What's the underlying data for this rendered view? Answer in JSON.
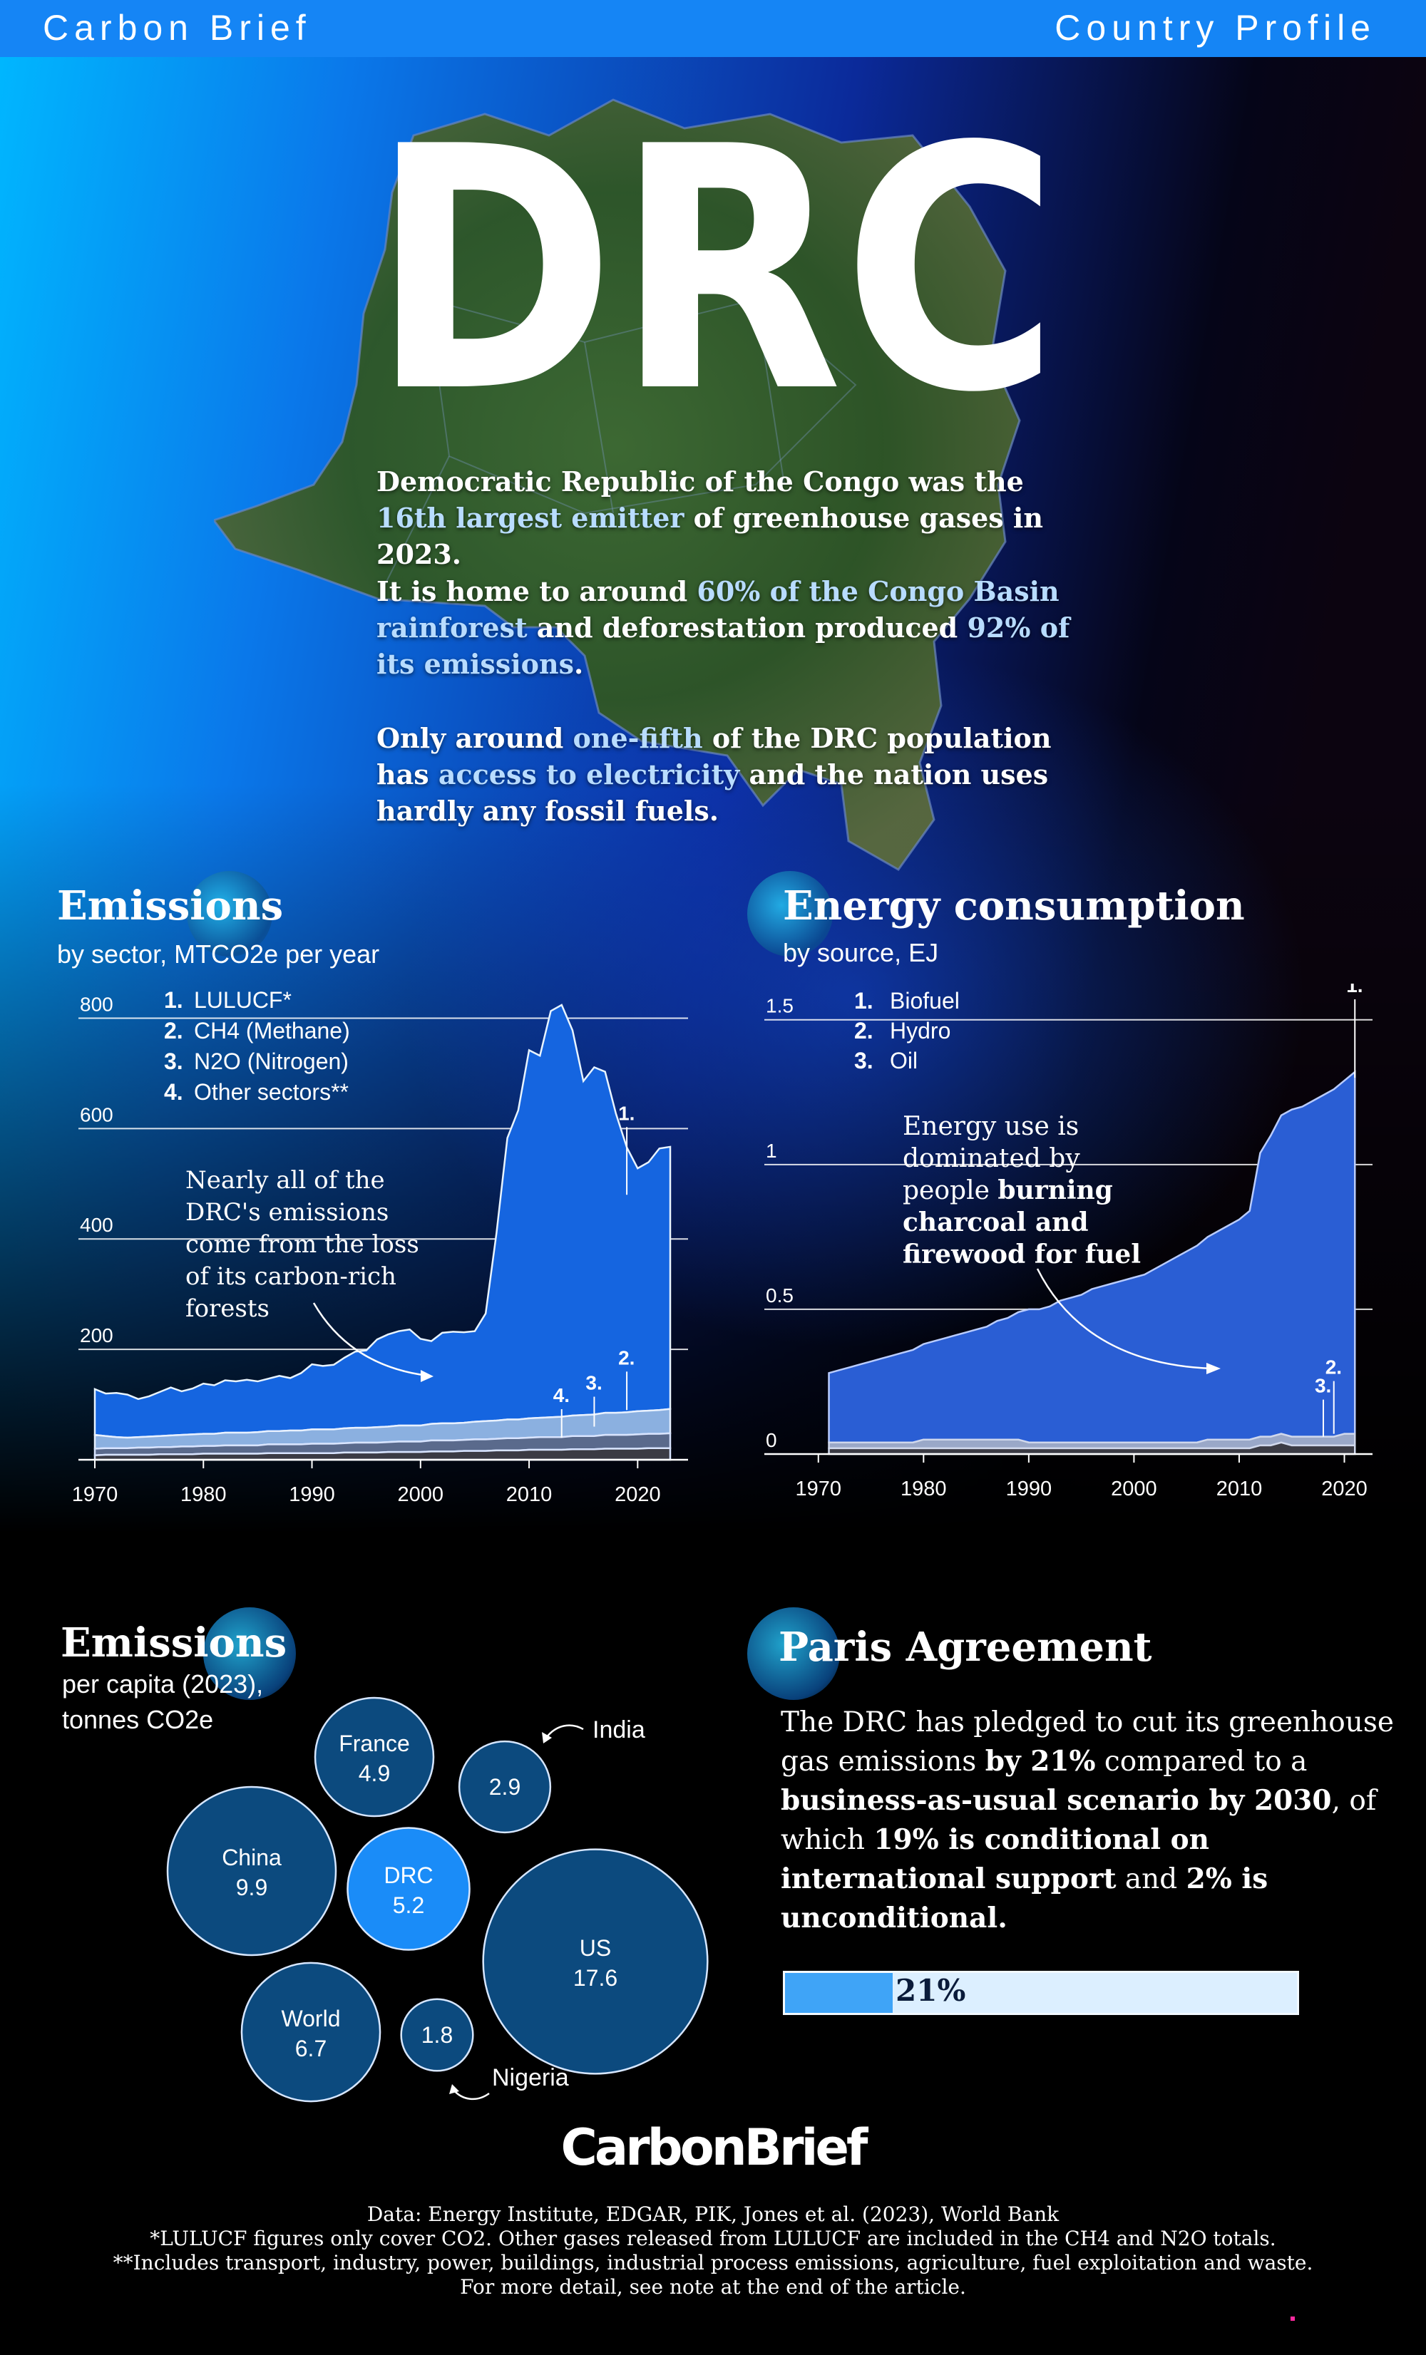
{
  "header": {
    "brand": "Carbon Brief",
    "profile": "Country Profile"
  },
  "title": "DRC",
  "intro": {
    "p1": {
      "a": "Democratic Republic of the Congo was the ",
      "b": "16th largest emitter",
      "c": " of greenhouse gases in 2023."
    },
    "p2": {
      "a": "It is home to around ",
      "b": "60% of the Congo Basin rainforest",
      "c": " and deforestation produced ",
      "d": "92% of its emissions",
      "e": "."
    },
    "p3": {
      "a": "Only around ",
      "b": "one-fifth",
      "c": " of the DRC population has ",
      "d": "access to electricity",
      "e": " and the nation uses hardly any fossil fuels."
    }
  },
  "emissions": {
    "title": "Emissions",
    "subtitle": "by sector, MTCO2e per year",
    "legend": [
      {
        "num": "1.",
        "label": "LULUCF*"
      },
      {
        "num": "2.",
        "label": "CH4 (Methane)"
      },
      {
        "num": "3.",
        "label": "N2O (Nitrogen)"
      },
      {
        "num": "4.",
        "label": "Other sectors**"
      }
    ],
    "annotation": [
      "Nearly all of the",
      "DRC's emissions",
      "come from the loss",
      "of its carbon-rich",
      "forests"
    ],
    "tags": {
      "t1": "1.",
      "t2": "2.",
      "t3": "3.",
      "t4": "4."
    }
  },
  "energy": {
    "title": "Energy consumption",
    "subtitle": "by source, EJ",
    "legend": [
      {
        "num": "1.",
        "label": "Biofuel"
      },
      {
        "num": "2.",
        "label": "Hydro"
      },
      {
        "num": "3.",
        "label": "Oil"
      }
    ],
    "annotation": {
      "l1": "Energy use is",
      "l2": "dominated by",
      "l3a": "people ",
      "l3b": "burning",
      "l4": "charcoal and",
      "l5": "firewood for fuel"
    },
    "tags": {
      "t1": "1.",
      "t2": "2.",
      "t3": "3."
    }
  },
  "chart_data": [
    {
      "type": "area",
      "title": "Emissions",
      "subtitle": "by sector, MTCO2e per year",
      "xlabel": "",
      "ylabel": "",
      "xlim": [
        1970,
        2023
      ],
      "ylim": [
        0,
        860
      ],
      "x_ticks": [
        1970,
        1980,
        1990,
        2000,
        2010,
        2020
      ],
      "y_ticks": [
        200,
        400,
        600,
        800
      ],
      "x": [
        1970,
        1971,
        1972,
        1973,
        1974,
        1975,
        1976,
        1977,
        1978,
        1979,
        1980,
        1981,
        1982,
        1983,
        1984,
        1985,
        1986,
        1987,
        1988,
        1989,
        1990,
        1991,
        1992,
        1993,
        1994,
        1995,
        1996,
        1997,
        1998,
        1999,
        2000,
        2001,
        2002,
        2003,
        2004,
        2005,
        2006,
        2007,
        2008,
        2009,
        2010,
        2011,
        2012,
        2013,
        2014,
        2015,
        2016,
        2017,
        2018,
        2019,
        2020,
        2021,
        2022,
        2023
      ],
      "series": [
        {
          "name": "Other sectors**",
          "values": [
            8,
            9,
            9,
            9,
            9,
            9,
            10,
            10,
            10,
            10,
            11,
            11,
            11,
            11,
            11,
            11,
            12,
            12,
            12,
            12,
            12,
            12,
            12,
            13,
            13,
            13,
            13,
            14,
            14,
            14,
            14,
            15,
            15,
            15,
            16,
            16,
            16,
            17,
            17,
            17,
            18,
            18,
            18,
            18,
            19,
            19,
            19,
            20,
            20,
            20,
            20,
            21,
            21,
            21
          ]
        },
        {
          "name": "N2O (Nitrogen)",
          "values": [
            12,
            12,
            12,
            12,
            13,
            13,
            13,
            13,
            14,
            14,
            14,
            14,
            15,
            15,
            15,
            15,
            16,
            16,
            16,
            16,
            17,
            17,
            17,
            17,
            18,
            18,
            18,
            18,
            19,
            19,
            19,
            20,
            20,
            20,
            20,
            21,
            21,
            21,
            22,
            22,
            22,
            23,
            23,
            23,
            24,
            24,
            24,
            25,
            25,
            25,
            26,
            26,
            26,
            27
          ]
        },
        {
          "name": "CH4 (Methane)",
          "values": [
            25,
            22,
            20,
            19,
            19,
            20,
            20,
            21,
            21,
            22,
            22,
            22,
            23,
            23,
            23,
            24,
            24,
            24,
            25,
            25,
            26,
            26,
            26,
            27,
            27,
            27,
            28,
            28,
            29,
            29,
            29,
            30,
            31,
            31,
            31,
            32,
            33,
            33,
            34,
            34,
            35,
            35,
            36,
            37,
            37,
            38,
            39,
            40,
            40,
            41,
            42,
            42,
            43,
            44
          ]
        },
        {
          "name": "LULUCF*",
          "values": [
            83,
            77,
            80,
            78,
            69,
            73,
            80,
            87,
            79,
            83,
            91,
            88,
            95,
            93,
            96,
            92,
            95,
            100,
            95,
            104,
            118,
            115,
            117,
            128,
            138,
            140,
            159,
            167,
            171,
            174,
            157,
            150,
            164,
            166,
            164,
            164,
            195,
            340,
            510,
            560,
            667,
            656,
            736,
            746,
            698,
            605,
            629,
            618,
            542,
            480,
            440,
            450,
            474,
            475
          ]
        }
      ]
    },
    {
      "type": "area",
      "title": "Energy consumption",
      "subtitle": "by source, EJ",
      "xlabel": "",
      "ylabel": "",
      "xlim": [
        1965,
        2022
      ],
      "ylim": [
        0,
        1.62
      ],
      "x_ticks": [
        1970,
        1980,
        1990,
        2000,
        2010,
        2020
      ],
      "y_ticks": [
        0,
        0.5,
        1,
        1.5
      ],
      "x": [
        1971,
        1972,
        1973,
        1974,
        1975,
        1976,
        1977,
        1978,
        1979,
        1980,
        1981,
        1982,
        1983,
        1984,
        1985,
        1986,
        1987,
        1988,
        1989,
        1990,
        1991,
        1992,
        1993,
        1994,
        1995,
        1996,
        1997,
        1998,
        1999,
        2000,
        2001,
        2002,
        2003,
        2004,
        2005,
        2006,
        2007,
        2008,
        2009,
        2010,
        2011,
        2012,
        2013,
        2014,
        2015,
        2016,
        2017,
        2018,
        2019,
        2020,
        2021
      ],
      "series": [
        {
          "name": "Oil",
          "values": [
            0.02,
            0.02,
            0.02,
            0.02,
            0.02,
            0.02,
            0.02,
            0.02,
            0.02,
            0.02,
            0.02,
            0.02,
            0.02,
            0.02,
            0.02,
            0.02,
            0.02,
            0.02,
            0.02,
            0.02,
            0.02,
            0.02,
            0.02,
            0.02,
            0.02,
            0.02,
            0.02,
            0.02,
            0.02,
            0.02,
            0.02,
            0.02,
            0.02,
            0.02,
            0.02,
            0.02,
            0.02,
            0.02,
            0.02,
            0.02,
            0.02,
            0.03,
            0.03,
            0.04,
            0.03,
            0.03,
            0.03,
            0.03,
            0.03,
            0.03,
            0.03
          ]
        },
        {
          "name": "Hydro",
          "values": [
            0.02,
            0.02,
            0.02,
            0.02,
            0.02,
            0.02,
            0.02,
            0.02,
            0.02,
            0.03,
            0.03,
            0.03,
            0.03,
            0.03,
            0.03,
            0.03,
            0.03,
            0.03,
            0.03,
            0.02,
            0.02,
            0.02,
            0.02,
            0.02,
            0.02,
            0.02,
            0.02,
            0.02,
            0.02,
            0.02,
            0.02,
            0.02,
            0.02,
            0.02,
            0.02,
            0.02,
            0.03,
            0.03,
            0.03,
            0.03,
            0.03,
            0.03,
            0.03,
            0.03,
            0.03,
            0.03,
            0.03,
            0.03,
            0.03,
            0.04,
            0.04
          ]
        },
        {
          "name": "Biofuel",
          "values": [
            0.24,
            0.25,
            0.26,
            0.27,
            0.28,
            0.29,
            0.3,
            0.31,
            0.32,
            0.33,
            0.34,
            0.35,
            0.36,
            0.37,
            0.38,
            0.39,
            0.41,
            0.42,
            0.44,
            0.46,
            0.46,
            0.47,
            0.49,
            0.5,
            0.51,
            0.53,
            0.54,
            0.55,
            0.56,
            0.57,
            0.58,
            0.6,
            0.62,
            0.64,
            0.66,
            0.68,
            0.7,
            0.72,
            0.74,
            0.76,
            0.79,
            0.98,
            1.04,
            1.1,
            1.13,
            1.14,
            1.16,
            1.18,
            1.2,
            1.22,
            1.25
          ]
        }
      ]
    },
    {
      "type": "bubble",
      "title": "Emissions",
      "subtitle": [
        "per capita (2023),",
        "tonnes CO2e"
      ],
      "points": [
        {
          "name": "France",
          "value": 4.9,
          "label": "4.9",
          "highlight": false
        },
        {
          "name": "India",
          "value": 2.9,
          "label": "2.9",
          "highlight": false
        },
        {
          "name": "China",
          "value": 9.9,
          "label": "9.9",
          "highlight": false
        },
        {
          "name": "DRC",
          "value": 5.2,
          "label": "5.2",
          "highlight": true
        },
        {
          "name": "US",
          "value": 17.6,
          "label": "17.6",
          "highlight": false
        },
        {
          "name": "World",
          "value": 6.7,
          "label": "6.7",
          "highlight": false
        },
        {
          "name": "Nigeria",
          "value": 1.8,
          "label": "1.8",
          "highlight": false
        }
      ]
    },
    {
      "type": "bar",
      "title": "Paris Agreement",
      "categories": [
        "Pledged cut"
      ],
      "values": [
        21
      ],
      "label": "21%",
      "ylim": [
        0,
        100
      ]
    }
  ],
  "paris": {
    "title": "Paris Agreement",
    "t1": "The DRC has pledged to cut its greenhouse gas emissions ",
    "b1": "by 21%",
    "t2": " compared to a ",
    "b2": "business-as-usual scenario by 2030",
    "t3": ", of which ",
    "b3": "19% is conditional on international support",
    "t4": " and ",
    "b4": "2% is unconditional.",
    "bar_label": "21%"
  },
  "percap": {
    "title": "Emissions",
    "sub1": "per capita (2023),",
    "sub2": "tonnes CO2e",
    "india": "India",
    "nigeria": "Nigeria"
  },
  "footer": {
    "logo": "CarbonBrief",
    "line1": "Data: Energy Institute, EDGAR, PIK, Jones et al. (2023), World Bank",
    "line2": "*LULUCF figures only cover CO2. Other gases released from LULUCF are included in the CH4 and N2O totals.",
    "line3": "**Includes transport, industry, power, buildings, industrial process emissions, agriculture, fuel exploitation and waste.",
    "line4": "For more detail, see note at the end of the article."
  },
  "colors": {
    "header_bar": "#1585f5",
    "chart_area": "#1565e0",
    "energy_area": "#2a5ed4",
    "bubble": "#0c4a7e",
    "bubble_highlight": "#1a8cf8",
    "bar_fill": "#3fa4f7",
    "bar_track": "#dcefff"
  }
}
